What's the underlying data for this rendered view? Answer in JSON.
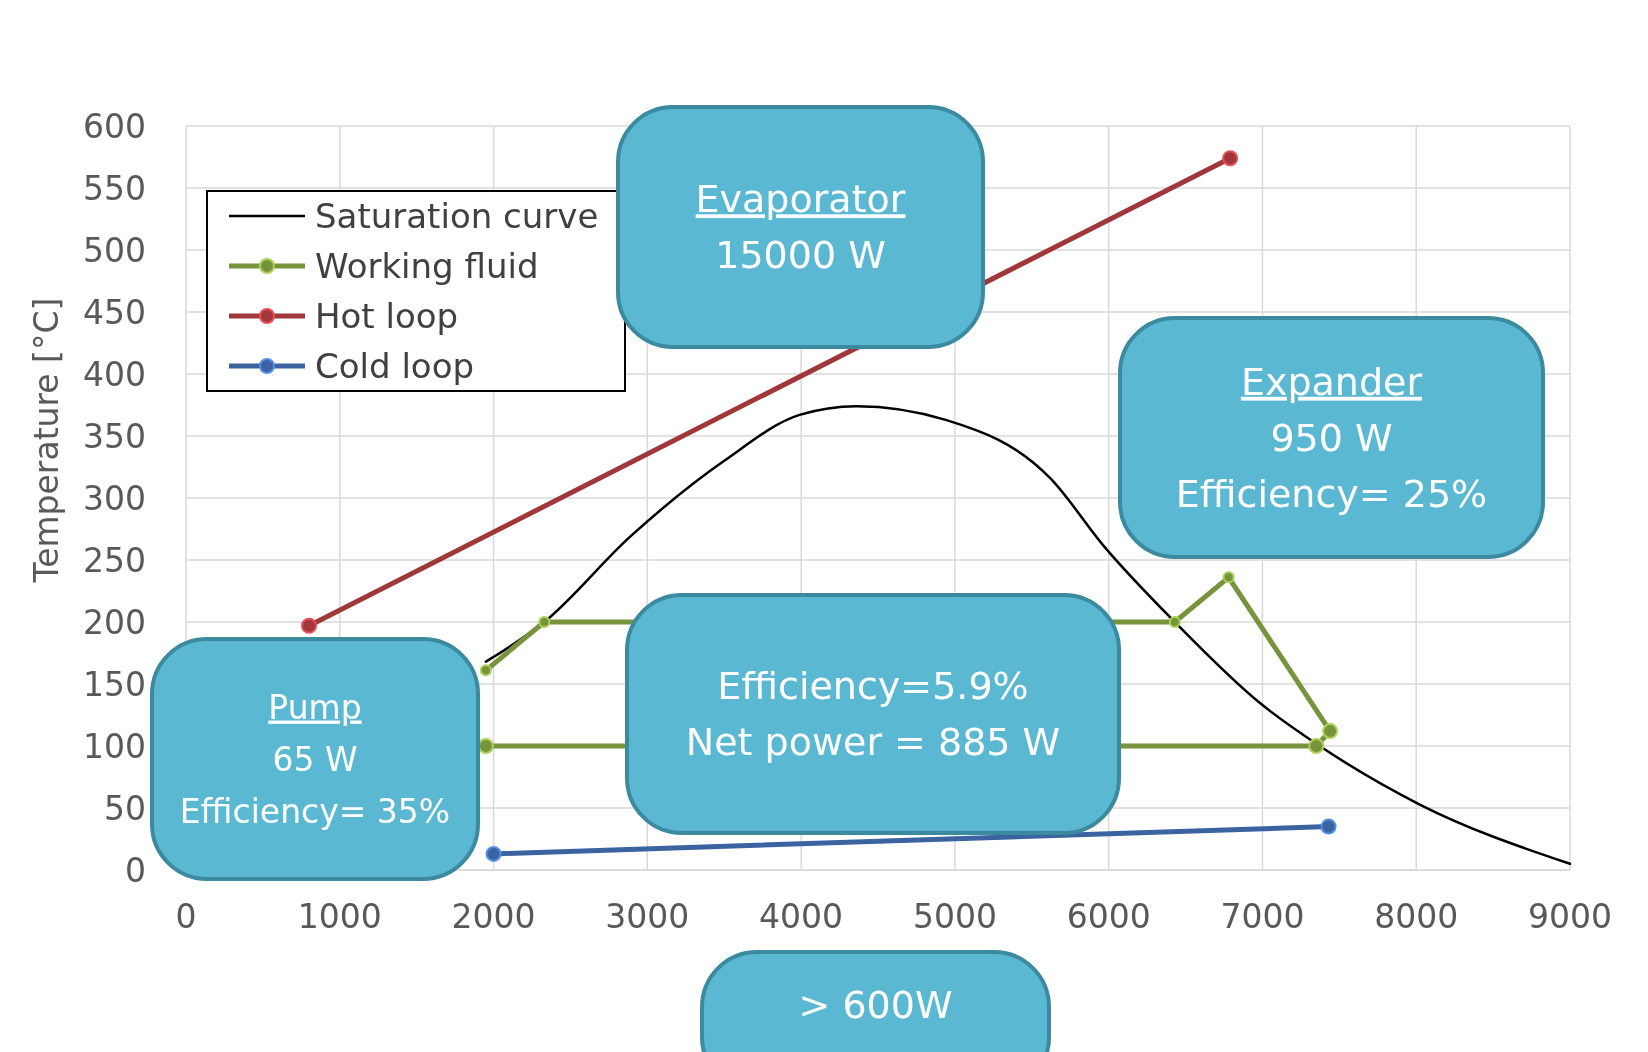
{
  "chart_data": {
    "type": "line",
    "ylabel": "Temperature [°C]",
    "xlim": [
      0,
      9000
    ],
    "xticks": [
      0,
      1000,
      2000,
      3000,
      4000,
      5000,
      6000,
      7000,
      8000,
      9000
    ],
    "ylim": [
      0,
      600
    ],
    "yticks": [
      0,
      50,
      100,
      150,
      200,
      250,
      300,
      350,
      400,
      450,
      500,
      550,
      600
    ],
    "grid": true,
    "legend": "top left",
    "series": [
      {
        "name": "Saturation curve",
        "color": "#000000",
        "marker": "none",
        "x": [
          1950,
          2330,
          2890,
          3500,
          3990,
          4360,
          4940,
          5620,
          5970,
          6430,
          6990,
          7360,
          8020,
          9000
        ],
        "values": [
          168,
          200,
          269,
          330,
          367,
          374,
          363,
          316,
          261,
          200,
          134,
          101,
          53,
          5
        ]
      },
      {
        "name": "Working fluid",
        "color": "#77933c",
        "marker": "circle",
        "x": [
          1950,
          2330,
          6430,
          6780,
          7440
        ],
        "values": [
          161,
          200,
          200,
          236,
          112
        ]
      },
      {
        "color": "#77933c",
        "marker": "circle",
        "x": [
          1950,
          7350,
          7440
        ],
        "values": [
          100,
          100,
          112
        ]
      },
      {
        "name": "Hot loop",
        "color": "#a0373a",
        "marker": "circle",
        "x": [
          800,
          6790
        ],
        "values": [
          197,
          574
        ]
      },
      {
        "name": "Cold loop",
        "color": "#3a63a0",
        "marker": "circle",
        "x": [
          2000,
          7430
        ],
        "values": [
          13,
          35
        ]
      }
    ],
    "annotations": [
      "Evaporator",
      "15000 W",
      "Expander",
      "950 W",
      "Efficiency= 25%",
      "Efficiency=5.9%",
      "Net power = 885 W",
      "Pump",
      "65 W",
      "Efficiency= 35%",
      "> 600W"
    ]
  }
}
